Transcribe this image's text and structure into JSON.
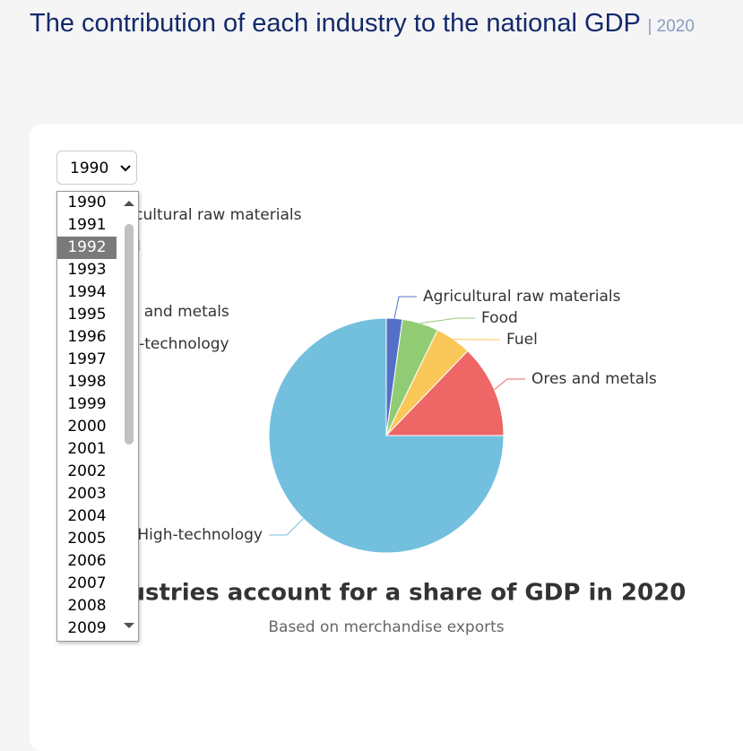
{
  "header": {
    "title": "The contribution of each industry to the national GDP",
    "year": "| 2020"
  },
  "select": {
    "options": [
      "1990",
      "1991",
      "1992",
      "1993",
      "1994",
      "1995",
      "1996",
      "1997",
      "1998",
      "1999",
      "2000",
      "2001",
      "2002",
      "2003",
      "2004",
      "2005",
      "2006",
      "2007",
      "2008",
      "2009"
    ]
  },
  "chart_data": {
    "type": "pie",
    "title": "Industries account for a share of GDP in 2020",
    "subtitle": "Based on merchandise exports",
    "categories": [
      "Agricultural raw materials",
      "Food",
      "Fuel",
      "Ores and metals",
      "High-technology"
    ],
    "values": [
      2.2,
      5,
      5,
      12.8,
      75
    ],
    "colors": [
      "#5470c6",
      "#91cc75",
      "#fac858",
      "#ee6666",
      "#73c0de"
    ]
  }
}
